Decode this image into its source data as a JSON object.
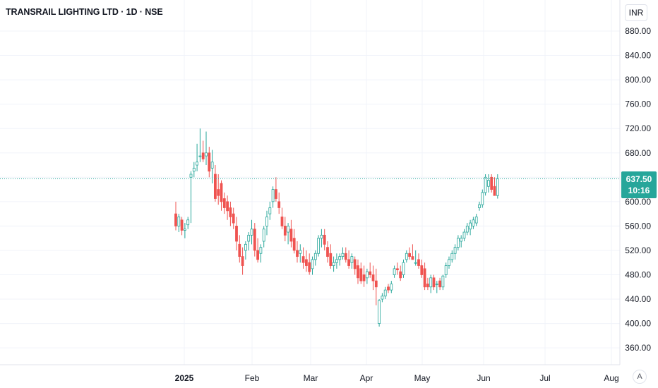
{
  "title": "TRANSRAIL LIGHTING LTD · 1D · NSE",
  "currency": "INR",
  "scale_mode": "A",
  "last_price": {
    "price": "637.50",
    "countdown": "10:16",
    "value": 637.5,
    "color": "#26a69a"
  },
  "colors": {
    "up": "#26a69a",
    "down": "#ef5350",
    "grid": "#f0f3fa",
    "axis_text": "#131722"
  },
  "chart_data": {
    "type": "candlestick",
    "y_axis": {
      "ticks": [
        "880.00",
        "840.00",
        "800.00",
        "760.00",
        "720.00",
        "680.00",
        "640.00",
        "600.00",
        "560.00",
        "520.00",
        "480.00",
        "440.00",
        "400.00",
        "360.00"
      ],
      "tick_values": [
        880,
        840,
        800,
        760,
        720,
        680,
        640,
        600,
        560,
        520,
        480,
        440,
        400,
        360
      ],
      "range": [
        340,
        905
      ],
      "position": "right"
    },
    "x_axis": {
      "labels": [
        "2025",
        "Feb",
        "Mar",
        "Apr",
        "May",
        "Jun",
        "Jul",
        "Aug"
      ],
      "bold_label": "2025"
    },
    "grid": true,
    "candles": [
      [
        580,
        600,
        553,
        560
      ],
      [
        560,
        580,
        550,
        575
      ],
      [
        570,
        575,
        545,
        553
      ],
      [
        553,
        565,
        540,
        555
      ],
      [
        562,
        575,
        555,
        570
      ],
      [
        640,
        650,
        565,
        645
      ],
      [
        650,
        665,
        640,
        655
      ],
      [
        660,
        695,
        650,
        665
      ],
      [
        675,
        720,
        665,
        675
      ],
      [
        680,
        700,
        665,
        670
      ],
      [
        675,
        715,
        660,
        680
      ],
      [
        680,
        690,
        640,
        650
      ],
      [
        655,
        685,
        630,
        665
      ],
      [
        645,
        660,
        600,
        605
      ],
      [
        620,
        645,
        595,
        610
      ],
      [
        630,
        635,
        585,
        600
      ],
      [
        605,
        615,
        580,
        590
      ],
      [
        600,
        610,
        570,
        585
      ],
      [
        590,
        600,
        560,
        575
      ],
      [
        580,
        590,
        555,
        565
      ],
      [
        560,
        575,
        520,
        535
      ],
      [
        530,
        545,
        500,
        510
      ],
      [
        510,
        525,
        480,
        495
      ],
      [
        520,
        535,
        505,
        530
      ],
      [
        535,
        550,
        520,
        545
      ],
      [
        545,
        570,
        530,
        555
      ],
      [
        555,
        565,
        510,
        520
      ],
      [
        520,
        540,
        500,
        505
      ],
      [
        515,
        530,
        500,
        525
      ],
      [
        535,
        560,
        525,
        555
      ],
      [
        560,
        585,
        545,
        575
      ],
      [
        580,
        600,
        570,
        590
      ],
      [
        600,
        625,
        590,
        620
      ],
      [
        620,
        640,
        600,
        605
      ],
      [
        600,
        615,
        580,
        590
      ],
      [
        575,
        590,
        555,
        560
      ],
      [
        560,
        575,
        535,
        545
      ],
      [
        550,
        565,
        530,
        560
      ],
      [
        555,
        570,
        525,
        535
      ],
      [
        540,
        555,
        515,
        520
      ],
      [
        520,
        535,
        500,
        510
      ],
      [
        515,
        530,
        500,
        520
      ],
      [
        510,
        525,
        490,
        500
      ],
      [
        505,
        520,
        485,
        495
      ],
      [
        500,
        515,
        480,
        485
      ],
      [
        490,
        510,
        480,
        505
      ],
      [
        505,
        520,
        495,
        515
      ],
      [
        515,
        545,
        510,
        540
      ],
      [
        540,
        555,
        525,
        545
      ],
      [
        545,
        555,
        520,
        530
      ],
      [
        525,
        535,
        500,
        510
      ],
      [
        515,
        530,
        490,
        495
      ],
      [
        495,
        510,
        485,
        500
      ],
      [
        500,
        515,
        490,
        505
      ],
      [
        505,
        515,
        495,
        510
      ],
      [
        510,
        525,
        505,
        515
      ],
      [
        515,
        525,
        500,
        505
      ],
      [
        505,
        520,
        490,
        495
      ],
      [
        500,
        515,
        490,
        510
      ],
      [
        505,
        510,
        480,
        490
      ],
      [
        495,
        505,
        465,
        475
      ],
      [
        490,
        500,
        465,
        470
      ],
      [
        480,
        495,
        460,
        470
      ],
      [
        475,
        490,
        465,
        485
      ],
      [
        485,
        500,
        475,
        480
      ],
      [
        480,
        495,
        455,
        470
      ],
      [
        470,
        490,
        430,
        460
      ],
      [
        400,
        440,
        395,
        438
      ],
      [
        440,
        450,
        435,
        445
      ],
      [
        445,
        460,
        440,
        455
      ],
      [
        460,
        465,
        450,
        455
      ],
      [
        455,
        470,
        450,
        465
      ],
      [
        480,
        495,
        475,
        490
      ],
      [
        490,
        500,
        480,
        488
      ],
      [
        485,
        495,
        470,
        475
      ],
      [
        480,
        505,
        475,
        500
      ],
      [
        505,
        520,
        500,
        515
      ],
      [
        515,
        525,
        505,
        510
      ],
      [
        510,
        530,
        505,
        505
      ],
      [
        500,
        520,
        495,
        500
      ],
      [
        505,
        515,
        490,
        495
      ],
      [
        495,
        505,
        475,
        480
      ],
      [
        490,
        500,
        455,
        460
      ],
      [
        465,
        475,
        455,
        460
      ],
      [
        460,
        480,
        450,
        475
      ],
      [
        475,
        480,
        455,
        460
      ],
      [
        465,
        470,
        450,
        465
      ],
      [
        470,
        475,
        455,
        460
      ],
      [
        460,
        480,
        455,
        478
      ],
      [
        480,
        500,
        475,
        495
      ],
      [
        495,
        510,
        490,
        505
      ],
      [
        505,
        520,
        500,
        515
      ],
      [
        515,
        530,
        505,
        525
      ],
      [
        525,
        545,
        520,
        540
      ],
      [
        535,
        545,
        525,
        540
      ],
      [
        540,
        555,
        535,
        550
      ],
      [
        550,
        565,
        545,
        560
      ],
      [
        555,
        570,
        545,
        565
      ],
      [
        560,
        575,
        555,
        570
      ],
      [
        565,
        580,
        560,
        575
      ],
      [
        590,
        600,
        585,
        595
      ],
      [
        595,
        620,
        590,
        615
      ],
      [
        615,
        645,
        610,
        640
      ],
      [
        625,
        645,
        615,
        635
      ],
      [
        640,
        645,
        615,
        620
      ],
      [
        625,
        640,
        610,
        610
      ],
      [
        610,
        645,
        605,
        637.5
      ]
    ]
  }
}
